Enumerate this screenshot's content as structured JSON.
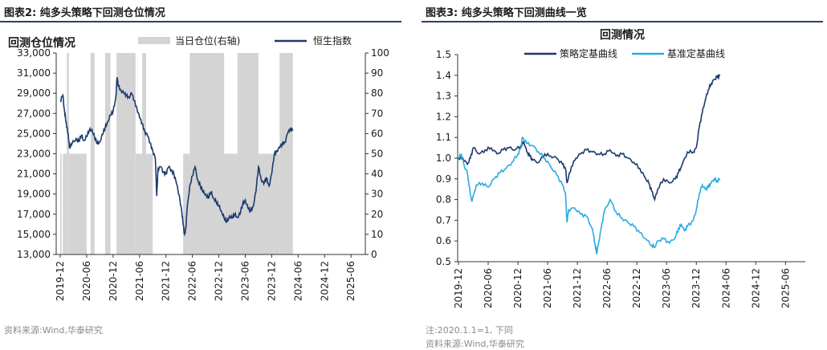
{
  "left": {
    "fig_title": "图表2:  纯多头策略下回测仓位情况",
    "source": "资料来源:Wind,华泰研究",
    "chart_data": {
      "type": "line",
      "title": "回测仓位情况",
      "legend": {
        "placement": "top",
        "items": [
          "当日仓位(右轴)",
          "恒生指数"
        ]
      },
      "x_ticks": [
        "2019-12",
        "2020-06",
        "2020-12",
        "2021-06",
        "2021-12",
        "2022-06",
        "2022-12",
        "2023-06",
        "2023-12",
        "2024-06",
        "2024-12",
        "2025-06"
      ],
      "ylim": [
        13000,
        33000
      ],
      "y_ticks": [
        "13,000",
        "15,000",
        "17,000",
        "19,000",
        "21,000",
        "23,000",
        "25,000",
        "27,000",
        "29,000",
        "31,000",
        "33,000"
      ],
      "y2lim": [
        0,
        100
      ],
      "y2_ticks": [
        "0",
        "10",
        "20",
        "30",
        "40",
        "50",
        "60",
        "70",
        "80",
        "90",
        "100"
      ],
      "series": [
        {
          "name": "恒生指数",
          "color": "#1b3a6b",
          "points": [
            [
              0,
              28200
            ],
            [
              0.1,
              28800
            ],
            [
              0.15,
              27500
            ],
            [
              0.2,
              26500
            ],
            [
              0.25,
              25600
            ],
            [
              0.3,
              25000
            ],
            [
              0.35,
              23600
            ],
            [
              0.45,
              24000
            ],
            [
              0.6,
              24500
            ],
            [
              0.7,
              24200
            ],
            [
              0.8,
              24800
            ],
            [
              0.9,
              24300
            ],
            [
              1.0,
              24700
            ],
            [
              1.1,
              25300
            ],
            [
              1.2,
              25400
            ],
            [
              1.3,
              24600
            ],
            [
              1.4,
              24000
            ],
            [
              1.5,
              24200
            ],
            [
              1.6,
              24900
            ],
            [
              1.7,
              25600
            ],
            [
              1.8,
              26200
            ],
            [
              1.9,
              26800
            ],
            [
              2.0,
              27200
            ],
            [
              2.1,
              28500
            ],
            [
              2.15,
              30600
            ],
            [
              2.2,
              29700
            ],
            [
              2.3,
              29300
            ],
            [
              2.4,
              29000
            ],
            [
              2.5,
              28800
            ],
            [
              2.6,
              28600
            ],
            [
              2.7,
              29000
            ],
            [
              2.8,
              28300
            ],
            [
              2.9,
              27500
            ],
            [
              3.0,
              26600
            ],
            [
              3.1,
              26000
            ],
            [
              3.2,
              25200
            ],
            [
              3.3,
              24800
            ],
            [
              3.4,
              24100
            ],
            [
              3.5,
              23300
            ],
            [
              3.6,
              22500
            ],
            [
              3.65,
              18800
            ],
            [
              3.7,
              21500
            ],
            [
              3.8,
              21700
            ],
            [
              3.9,
              21200
            ],
            [
              4.0,
              21000
            ],
            [
              4.1,
              21700
            ],
            [
              4.2,
              21400
            ],
            [
              4.3,
              21000
            ],
            [
              4.4,
              20000
            ],
            [
              4.5,
              18900
            ],
            [
              4.6,
              17200
            ],
            [
              4.65,
              16000
            ],
            [
              4.7,
              15000
            ],
            [
              4.75,
              15600
            ],
            [
              4.8,
              17500
            ],
            [
              4.9,
              19800
            ],
            [
              5.0,
              20800
            ],
            [
              5.1,
              21700
            ],
            [
              5.2,
              20400
            ],
            [
              5.3,
              19800
            ],
            [
              5.4,
              19200
            ],
            [
              5.5,
              19000
            ],
            [
              5.6,
              18600
            ],
            [
              5.7,
              19200
            ],
            [
              5.8,
              18600
            ],
            [
              5.9,
              18200
            ],
            [
              6.0,
              17800
            ],
            [
              6.1,
              17300
            ],
            [
              6.2,
              16600
            ],
            [
              6.3,
              16200
            ],
            [
              6.4,
              16800
            ],
            [
              6.5,
              16600
            ],
            [
              6.6,
              17000
            ],
            [
              6.7,
              16700
            ],
            [
              6.8,
              17000
            ],
            [
              6.9,
              18000
            ],
            [
              7.0,
              18400
            ],
            [
              7.1,
              17600
            ],
            [
              7.2,
              17300
            ],
            [
              7.3,
              17800
            ],
            [
              7.4,
              19200
            ],
            [
              7.5,
              21700
            ],
            [
              7.6,
              20500
            ],
            [
              7.7,
              20000
            ],
            [
              7.8,
              20600
            ],
            [
              7.9,
              19800
            ],
            [
              8.0,
              21000
            ],
            [
              8.1,
              23000
            ],
            [
              8.2,
              23300
            ],
            [
              8.3,
              23600
            ],
            [
              8.4,
              24000
            ],
            [
              8.5,
              24100
            ],
            [
              8.6,
              25000
            ],
            [
              8.7,
              25500
            ],
            [
              8.8,
              25300
            ]
          ]
        }
      ],
      "position_series": {
        "name": "当日仓位(右轴)",
        "color": "#d4d4d4",
        "segments": [
          [
            0.0,
            0.05,
            50
          ],
          [
            0.05,
            0.1,
            0
          ],
          [
            0.1,
            0.25,
            50
          ],
          [
            0.25,
            0.33,
            100
          ],
          [
            0.33,
            1.0,
            50
          ],
          [
            1.0,
            1.15,
            0
          ],
          [
            1.15,
            1.3,
            100
          ],
          [
            1.3,
            1.7,
            0
          ],
          [
            1.7,
            1.9,
            100
          ],
          [
            1.9,
            2.13,
            0
          ],
          [
            2.13,
            2.85,
            100
          ],
          [
            2.85,
            3.1,
            50
          ],
          [
            3.1,
            3.25,
            100
          ],
          [
            3.25,
            3.5,
            50
          ],
          [
            3.5,
            3.65,
            0
          ],
          [
            3.65,
            4.65,
            0
          ],
          [
            4.65,
            4.9,
            50
          ],
          [
            4.9,
            6.2,
            100
          ],
          [
            6.2,
            6.7,
            50
          ],
          [
            6.7,
            7.5,
            100
          ],
          [
            7.5,
            8.3,
            50
          ],
          [
            8.3,
            8.8,
            100
          ]
        ]
      }
    }
  },
  "right": {
    "fig_title": "图表3:  纯多头策略下回测曲线一览",
    "note": "注:2020.1.1=1, 下同",
    "source": "资料来源:Wind,华泰研究",
    "chart_data": {
      "type": "line",
      "title": "回测情况",
      "legend": {
        "placement": "top",
        "items": [
          "策略定基曲线",
          "基准定基曲线"
        ]
      },
      "x_ticks": [
        "2019-12",
        "2020-06",
        "2020-12",
        "2021-06",
        "2021-12",
        "2022-06",
        "2022-12",
        "2023-06",
        "2023-12",
        "2024-06",
        "2024-12",
        "2025-06"
      ],
      "ylim": [
        0.5,
        1.5
      ],
      "y_ticks": [
        "0.5",
        "0.6",
        "0.7",
        "0.8",
        "0.9",
        "1.0",
        "1.1",
        "1.2",
        "1.3",
        "1.4",
        "1.5"
      ],
      "series": [
        {
          "name": "策略定基曲线",
          "color": "#1b3a6b",
          "points": [
            [
              0,
              1.0
            ],
            [
              0.15,
              1.0
            ],
            [
              0.3,
              0.97
            ],
            [
              0.4,
              1.0
            ],
            [
              0.5,
              1.05
            ],
            [
              0.7,
              1.02
            ],
            [
              0.9,
              1.04
            ],
            [
              1.1,
              1.05
            ],
            [
              1.3,
              1.02
            ],
            [
              1.5,
              1.04
            ],
            [
              1.7,
              1.05
            ],
            [
              1.9,
              1.04
            ],
            [
              2.1,
              1.06
            ],
            [
              2.2,
              1.08
            ],
            [
              2.3,
              1.03
            ],
            [
              2.4,
              1.01
            ],
            [
              2.5,
              0.99
            ],
            [
              2.7,
              0.98
            ],
            [
              2.9,
              1.02
            ],
            [
              3.1,
              1.01
            ],
            [
              3.3,
              1.0
            ],
            [
              3.5,
              0.97
            ],
            [
              3.6,
              0.95
            ],
            [
              3.65,
              0.88
            ],
            [
              3.8,
              0.96
            ],
            [
              3.95,
              1.0
            ],
            [
              4.1,
              1.02
            ],
            [
              4.3,
              1.04
            ],
            [
              4.5,
              1.03
            ],
            [
              4.7,
              1.02
            ],
            [
              4.9,
              1.02
            ],
            [
              5.1,
              1.04
            ],
            [
              5.3,
              1.01
            ],
            [
              5.5,
              1.02
            ],
            [
              5.7,
              1.0
            ],
            [
              5.9,
              0.98
            ],
            [
              6.1,
              0.95
            ],
            [
              6.3,
              0.9
            ],
            [
              6.4,
              0.88
            ],
            [
              6.5,
              0.84
            ],
            [
              6.6,
              0.8
            ],
            [
              6.7,
              0.85
            ],
            [
              6.9,
              0.9
            ],
            [
              7.1,
              0.88
            ],
            [
              7.3,
              0.9
            ],
            [
              7.4,
              0.93
            ],
            [
              7.5,
              0.96
            ],
            [
              7.7,
              1.03
            ],
            [
              7.9,
              1.03
            ],
            [
              8.0,
              1.05
            ],
            [
              8.1,
              1.15
            ],
            [
              8.2,
              1.22
            ],
            [
              8.3,
              1.28
            ],
            [
              8.4,
              1.33
            ],
            [
              8.5,
              1.36
            ],
            [
              8.6,
              1.38
            ],
            [
              8.7,
              1.39
            ],
            [
              8.8,
              1.4
            ]
          ]
        },
        {
          "name": "基准定基曲线",
          "color": "#29abe2",
          "points": [
            [
              0,
              1.0
            ],
            [
              0.1,
              1.02
            ],
            [
              0.2,
              0.96
            ],
            [
              0.3,
              0.93
            ],
            [
              0.35,
              0.87
            ],
            [
              0.45,
              0.79
            ],
            [
              0.6,
              0.87
            ],
            [
              0.8,
              0.88
            ],
            [
              1.0,
              0.86
            ],
            [
              1.2,
              0.9
            ],
            [
              1.4,
              0.93
            ],
            [
              1.6,
              0.95
            ],
            [
              1.8,
              0.98
            ],
            [
              2.0,
              1.02
            ],
            [
              2.1,
              1.05
            ],
            [
              2.15,
              1.1
            ],
            [
              2.3,
              1.07
            ],
            [
              2.5,
              1.06
            ],
            [
              2.7,
              1.03
            ],
            [
              2.9,
              1.0
            ],
            [
              3.1,
              0.96
            ],
            [
              3.3,
              0.92
            ],
            [
              3.5,
              0.87
            ],
            [
              3.6,
              0.83
            ],
            [
              3.65,
              0.69
            ],
            [
              3.7,
              0.75
            ],
            [
              3.9,
              0.76
            ],
            [
              4.1,
              0.73
            ],
            [
              4.3,
              0.72
            ],
            [
              4.5,
              0.66
            ],
            [
              4.6,
              0.58
            ],
            [
              4.65,
              0.54
            ],
            [
              4.7,
              0.58
            ],
            [
              4.8,
              0.66
            ],
            [
              4.9,
              0.74
            ],
            [
              5.1,
              0.8
            ],
            [
              5.3,
              0.74
            ],
            [
              5.5,
              0.71
            ],
            [
              5.7,
              0.69
            ],
            [
              5.9,
              0.67
            ],
            [
              6.1,
              0.64
            ],
            [
              6.3,
              0.61
            ],
            [
              6.5,
              0.58
            ],
            [
              6.6,
              0.57
            ],
            [
              6.7,
              0.6
            ],
            [
              6.9,
              0.61
            ],
            [
              7.1,
              0.59
            ],
            [
              7.3,
              0.62
            ],
            [
              7.4,
              0.66
            ],
            [
              7.5,
              0.68
            ],
            [
              7.6,
              0.65
            ],
            [
              7.7,
              0.67
            ],
            [
              7.9,
              0.7
            ],
            [
              8.0,
              0.75
            ],
            [
              8.1,
              0.83
            ],
            [
              8.2,
              0.87
            ],
            [
              8.3,
              0.85
            ],
            [
              8.4,
              0.86
            ],
            [
              8.5,
              0.88
            ],
            [
              8.6,
              0.9
            ],
            [
              8.7,
              0.89
            ],
            [
              8.8,
              0.9
            ]
          ]
        }
      ]
    }
  }
}
